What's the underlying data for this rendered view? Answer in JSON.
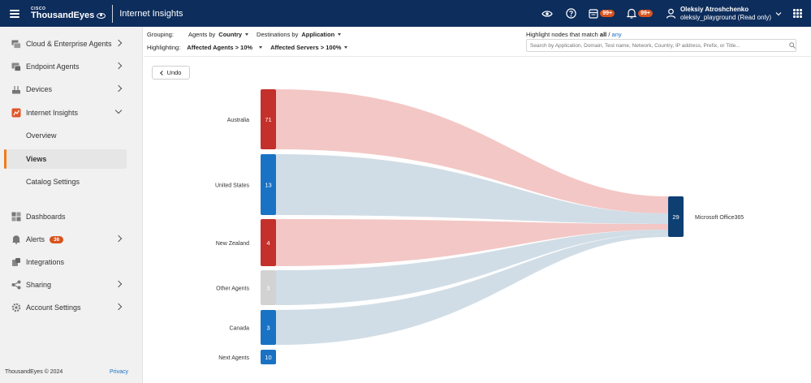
{
  "topbar": {
    "brand_small": "CISCO",
    "brand": "ThousandEyes",
    "app_title": "Internet Insights",
    "reports_badge": "99+",
    "notifications_badge": "99+",
    "user_name": "Oleksiy Atroshchenko",
    "user_account": "oleksiy_playground (Read only)"
  },
  "sidebar": {
    "items": [
      {
        "label": "Cloud & Enterprise Agents",
        "icon": "agents-icon"
      },
      {
        "label": "Endpoint Agents",
        "icon": "endpoint-icon"
      },
      {
        "label": "Devices",
        "icon": "devices-icon"
      },
      {
        "label": "Internet Insights",
        "icon": "internet-insights-icon"
      },
      {
        "label": "Dashboards",
        "icon": "dashboards-icon"
      },
      {
        "label": "Alerts",
        "icon": "bell-icon",
        "badge": "36"
      },
      {
        "label": "Integrations",
        "icon": "integrations-icon"
      },
      {
        "label": "Sharing",
        "icon": "share-icon"
      },
      {
        "label": "Account Settings",
        "icon": "gear-icon"
      }
    ],
    "sub_items": [
      "Overview",
      "Views",
      "Catalog Settings"
    ],
    "footer_copyright": "ThousandEyes © 2024",
    "footer_link": "Privacy"
  },
  "filters": {
    "grouping_label": "Grouping:",
    "agents_prefix": "Agents by",
    "agents_value": "Country",
    "destinations_prefix": "Destinations by",
    "destinations_value": "Application",
    "highlighting_label": "Highlighting:",
    "affected_agents": "Affected Agents > 10%",
    "affected_servers": "Affected Servers > 100%",
    "highlight_prefix": "Highlight nodes that match",
    "highlight_all": "all",
    "highlight_sep": "/",
    "highlight_any": "any",
    "search_placeholder": "Search by Application, Domain, Test name, Network, Country, IP address, Prefix, or Title..."
  },
  "undo_label": "Undo",
  "chart_data": {
    "type": "sankey",
    "sources": [
      {
        "label": "Australia",
        "value": "71",
        "color": "#c4302b",
        "flow": "#f2c4c2"
      },
      {
        "label": "United States",
        "value": "13",
        "color": "#1a72c4",
        "flow": "#cfdbe5"
      },
      {
        "label": "New Zealand",
        "value": "4",
        "color": "#c4302b",
        "flow": "#f2c4c2"
      },
      {
        "label": "Other Agents",
        "value": "3",
        "color": "#d2d2d2",
        "flow": "#cfdbe5"
      },
      {
        "label": "Canada",
        "value": "3",
        "color": "#1a72c4",
        "flow": "#cfdbe5"
      },
      {
        "label": "Next Agents",
        "value": "10",
        "color": "#1a72c4",
        "flow": ""
      }
    ],
    "target": {
      "label": "Microsoft Office365",
      "value": "29",
      "color": "#0d3f73"
    }
  }
}
